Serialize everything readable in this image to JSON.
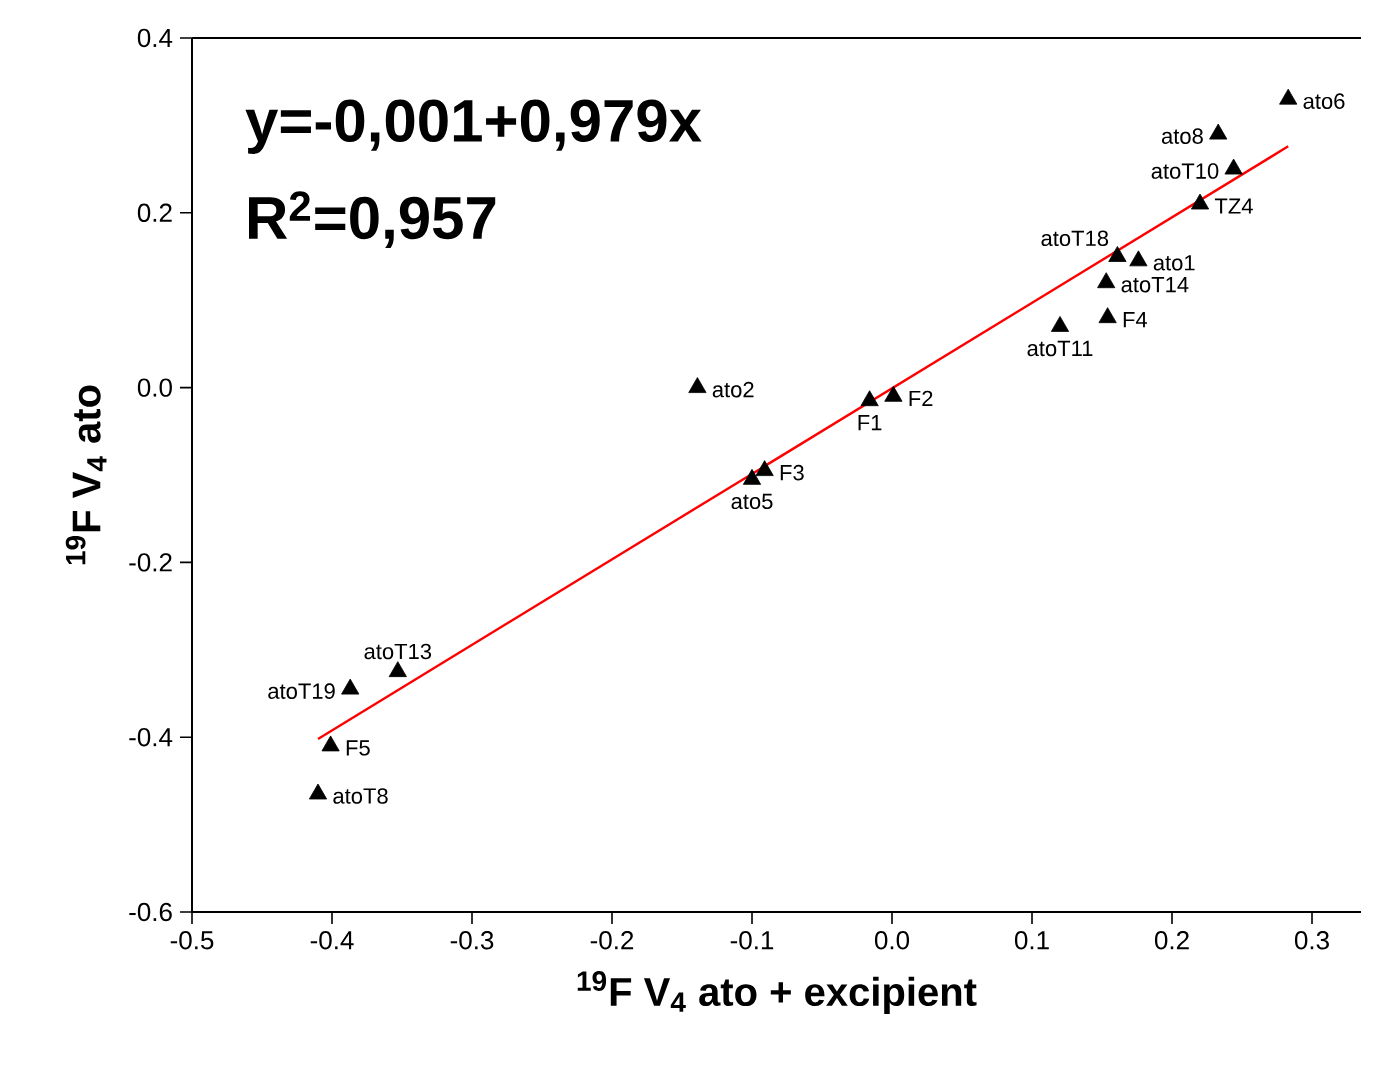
{
  "chart_data": {
    "type": "scatter",
    "xlabel": "$^{19}$F V$_{4}$ ato + excipient",
    "ylabel": "$^{19}$F V$_{4}$ ato",
    "xlim": [
      -0.5,
      0.335
    ],
    "ylim": [
      -0.6,
      0.4
    ],
    "xticks": [
      -0.5,
      -0.4,
      -0.3,
      -0.2,
      -0.1,
      {
        "value": 0,
        "label": "0.0"
      },
      0.1,
      0.2,
      0.3
    ],
    "yticks": [
      -0.6,
      -0.4,
      -0.2,
      {
        "value": 0,
        "label": "0.0"
      },
      0.2,
      0.4
    ],
    "grid": false,
    "marker": "triangle",
    "series": [
      {
        "color": "#000000",
        "x": [
          0.283,
          0.233,
          0.244,
          0.22,
          0.161,
          0.176,
          0.153,
          0.154,
          0.12,
          -0.139,
          -0.016,
          0.001,
          -0.091,
          -0.1,
          -0.353,
          -0.387,
          -0.401,
          -0.41
        ],
        "values": [
          0.33,
          0.29,
          0.25,
          0.21,
          0.15,
          0.145,
          0.12,
          0.08,
          0.07,
          0.0,
          -0.015,
          -0.01,
          -0.095,
          -0.105,
          -0.325,
          -0.345,
          -0.41,
          -0.465
        ]
      },
      {
        "type": "line",
        "color": "#ff0000",
        "marker": "none",
        "x": [
          -0.41,
          0.283
        ],
        "values": [
          -0.402,
          0.276
        ]
      }
    ],
    "annotations": [
      "y=-0,001+0,979x",
      "R$^{2}$=0,957",
      {
        "text": "ato6",
        "x": 0.283,
        "y": 0.33
      },
      {
        "text": "ato8",
        "x": 0.233,
        "y": 0.29
      },
      {
        "text": "atoT10",
        "x": 0.244,
        "y": 0.25
      },
      {
        "text": "TZ4",
        "x": 0.22,
        "y": 0.21
      },
      {
        "text": "atoT18",
        "x": 0.161,
        "y": 0.15
      },
      {
        "text": "ato1",
        "x": 0.176,
        "y": 0.145
      },
      {
        "text": "atoT14",
        "x": 0.153,
        "y": 0.12
      },
      {
        "text": "F4",
        "x": 0.154,
        "y": 0.08
      },
      {
        "text": "atoT11",
        "x": 0.12,
        "y": 0.07
      },
      {
        "text": "ato2",
        "x": -0.139,
        "y": 0.0
      },
      {
        "text": "F1",
        "x": -0.016,
        "y": -0.015
      },
      {
        "text": "F2",
        "x": 0.001,
        "y": -0.01
      },
      {
        "text": "F3",
        "x": -0.091,
        "y": -0.095
      },
      {
        "text": "ato5",
        "x": -0.1,
        "y": -0.105
      },
      {
        "text": "atoT13",
        "x": -0.353,
        "y": -0.325
      },
      {
        "text": "atoT19",
        "x": -0.387,
        "y": -0.345
      },
      {
        "text": "F5",
        "x": -0.401,
        "y": -0.41
      },
      {
        "text": "atoT8",
        "x": -0.41,
        "y": -0.465
      }
    ]
  }
}
